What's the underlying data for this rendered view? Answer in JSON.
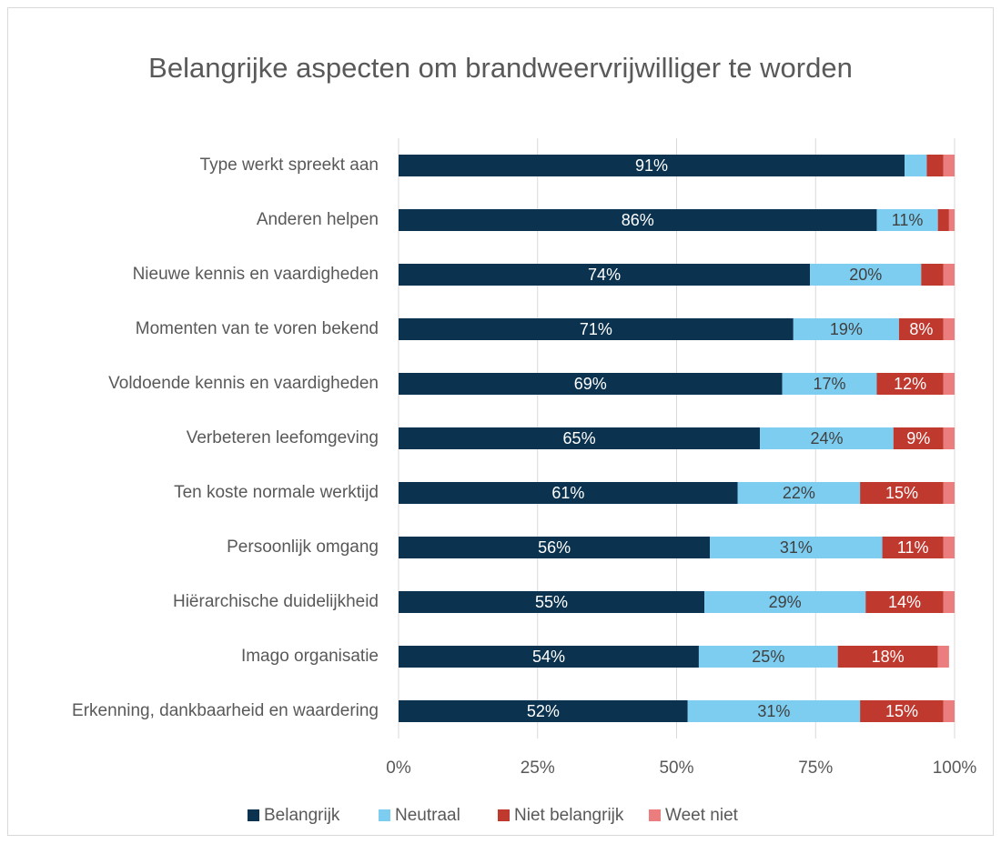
{
  "chart_data": {
    "type": "stacked_barh",
    "title": "Belangrijke aspecten om brandweervrijwilliger te worden",
    "categories": [
      "Type werkt spreekt aan",
      "Anderen helpen",
      "Nieuwe kennis en vaardigheden",
      "Momenten van te voren bekend",
      "Voldoende kennis en vaardigheden",
      "Verbeteren leefomgeving",
      "Ten koste normale werktijd",
      "Persoonlijk omgang",
      "Hiërarchische duidelijkheid",
      "Imago organisatie",
      "Erkenning, dankbaarheid en waardering"
    ],
    "series": [
      {
        "name": "Belangrijk",
        "color": "#0b3350",
        "label_color": "#ffffff",
        "values": [
          91,
          86,
          74,
          71,
          69,
          65,
          61,
          56,
          55,
          54,
          52
        ],
        "value_labels": [
          "91%",
          "86%",
          "74%",
          "71%",
          "69%",
          "65%",
          "61%",
          "56%",
          "55%",
          "54%",
          "52%"
        ]
      },
      {
        "name": "Neutraal",
        "color": "#7dcdf0",
        "label_color": "#404040",
        "values": [
          4,
          11,
          20,
          19,
          17,
          24,
          22,
          31,
          29,
          25,
          31
        ],
        "value_labels": [
          null,
          "11%",
          "20%",
          "19%",
          "17%",
          "24%",
          "22%",
          "31%",
          "29%",
          "25%",
          "31%"
        ]
      },
      {
        "name": "Niet belangrijk",
        "color": "#c0392f",
        "label_color": "#ffffff",
        "values": [
          3,
          2,
          4,
          8,
          12,
          9,
          15,
          11,
          14,
          18,
          15
        ],
        "value_labels": [
          null,
          null,
          null,
          "8%",
          "12%",
          "9%",
          "15%",
          "11%",
          "14%",
          "18%",
          "15%"
        ]
      },
      {
        "name": "Weet niet",
        "color": "#ec7d7e",
        "label_color": "#ffffff",
        "values": [
          2,
          1,
          2,
          2,
          2,
          2,
          2,
          2,
          2,
          2,
          2
        ]
      }
    ],
    "xlim": [
      0,
      100
    ],
    "xticks": [
      {
        "value": 0,
        "label": "0%"
      },
      {
        "value": 25,
        "label": "25%"
      },
      {
        "value": 50,
        "label": "50%"
      },
      {
        "value": 75,
        "label": "75%"
      },
      {
        "value": 100,
        "label": "100%"
      }
    ],
    "grid": true,
    "legend": "bottom"
  }
}
